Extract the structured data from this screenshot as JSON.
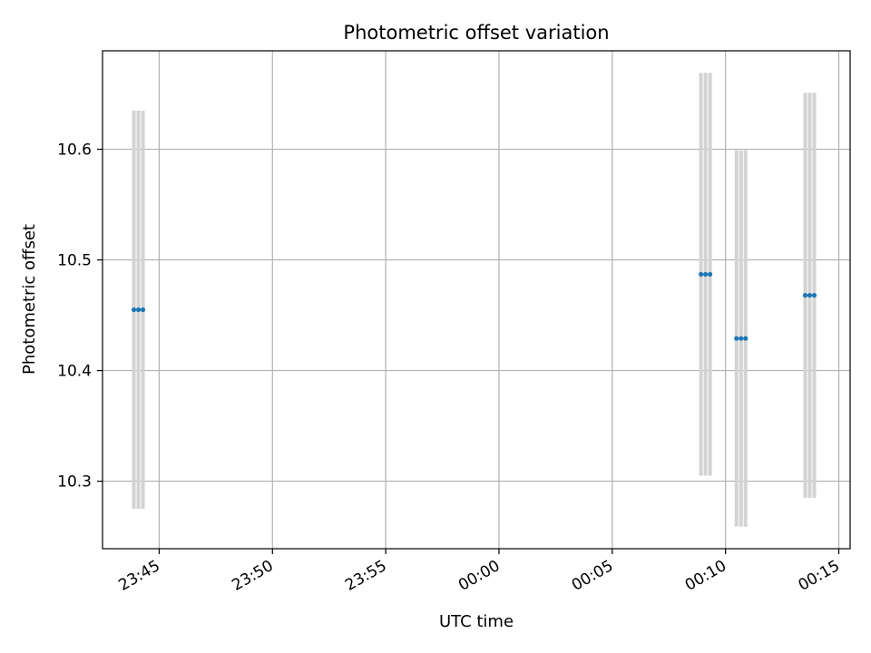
{
  "chart_data": {
    "type": "scatter",
    "title": "Photometric offset variation",
    "xlabel": "UTC time",
    "ylabel": "Photometric offset",
    "grid": true,
    "xlim": [
      "23:42:30",
      "00:15:30"
    ],
    "ylim": [
      10.239,
      10.689
    ],
    "x_ticks": [
      "23:45",
      "23:50",
      "23:55",
      "00:00",
      "00:05",
      "00:10",
      "00:15"
    ],
    "y_ticks": [
      "10.3",
      "10.4",
      "10.5",
      "10.6"
    ],
    "colors": {
      "points": "#1f77b4",
      "error_bars": "#d3d3d3",
      "grid": "#b0b0b0"
    },
    "series": [
      {
        "x": [
          "23:43:53",
          "23:44:05",
          "23:44:17",
          "00:08:55",
          "00:09:07",
          "00:09:19",
          "00:10:29",
          "00:10:41",
          "00:10:53",
          "00:13:31",
          "00:13:43",
          "00:13:55"
        ],
        "y": [
          10.455,
          10.455,
          10.455,
          10.487,
          10.487,
          10.487,
          10.429,
          10.429,
          10.429,
          10.468,
          10.468,
          10.468
        ],
        "yerr": [
          0.18,
          0.18,
          0.18,
          0.182,
          0.182,
          0.182,
          0.17,
          0.17,
          0.17,
          0.183,
          0.183,
          0.183
        ]
      }
    ]
  }
}
